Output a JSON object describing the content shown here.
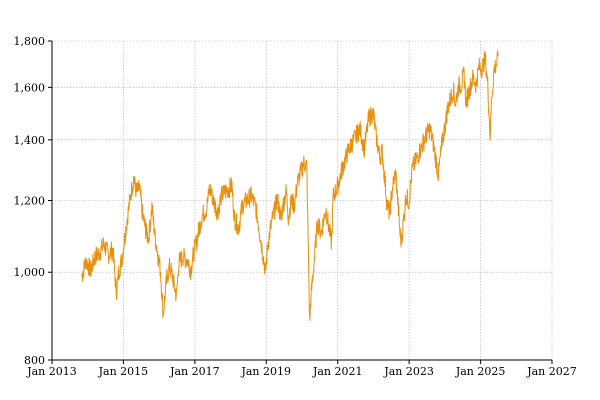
{
  "chart_data": {
    "type": "line",
    "title": "",
    "xlabel": "",
    "ylabel": "",
    "y_scale": "log",
    "ylim": [
      800,
      1800
    ],
    "xlim": [
      "2013-01-01",
      "2027-01-01"
    ],
    "grid": true,
    "legend": "none",
    "y_ticks": [
      {
        "value": 800,
        "label": "800"
      },
      {
        "value": 1000,
        "label": "1,000"
      },
      {
        "value": 1200,
        "label": "1,200"
      },
      {
        "value": 1400,
        "label": "1,400"
      },
      {
        "value": 1600,
        "label": "1,600"
      },
      {
        "value": 1800,
        "label": "1,800"
      }
    ],
    "x_ticks": [
      {
        "value": "2013-01-01",
        "label": "Jan 2013"
      },
      {
        "value": "2015-01-01",
        "label": "Jan 2015"
      },
      {
        "value": "2017-01-01",
        "label": "Jan 2017"
      },
      {
        "value": "2019-01-01",
        "label": "Jan 2019"
      },
      {
        "value": "2021-01-01",
        "label": "Jan 2021"
      },
      {
        "value": "2023-01-01",
        "label": "Jan 2023"
      },
      {
        "value": "2025-01-01",
        "label": "Jan 2025"
      },
      {
        "value": "2027-01-01",
        "label": "Jan 2027"
      }
    ],
    "series": [
      {
        "color": "#e8900c",
        "points": [
          [
            "2013-11-01",
            990
          ],
          [
            "2013-12-15",
            1030
          ],
          [
            "2014-02-01",
            1005
          ],
          [
            "2014-03-15",
            1040
          ],
          [
            "2014-05-01",
            1050
          ],
          [
            "2014-06-15",
            1075
          ],
          [
            "2014-08-01",
            1045
          ],
          [
            "2014-09-15",
            1060
          ],
          [
            "2014-10-20",
            950
          ],
          [
            "2014-11-15",
            1000
          ],
          [
            "2014-12-20",
            1040
          ],
          [
            "2015-02-01",
            1130
          ],
          [
            "2015-03-15",
            1215
          ],
          [
            "2015-04-15",
            1270
          ],
          [
            "2015-05-15",
            1225
          ],
          [
            "2015-06-15",
            1240
          ],
          [
            "2015-07-15",
            1160
          ],
          [
            "2015-08-20",
            1110
          ],
          [
            "2015-09-15",
            1090
          ],
          [
            "2015-10-20",
            1180
          ],
          [
            "2015-11-20",
            1095
          ],
          [
            "2016-01-15",
            1005
          ],
          [
            "2016-02-12",
            900
          ],
          [
            "2016-03-20",
            985
          ],
          [
            "2016-04-20",
            1015
          ],
          [
            "2016-05-20",
            985
          ],
          [
            "2016-06-27",
            940
          ],
          [
            "2016-07-20",
            1025
          ],
          [
            "2016-09-01",
            1040
          ],
          [
            "2016-10-20",
            1030
          ],
          [
            "2016-11-20",
            1005
          ],
          [
            "2016-12-20",
            1050
          ],
          [
            "2017-02-01",
            1100
          ],
          [
            "2017-03-15",
            1155
          ],
          [
            "2017-05-01",
            1175
          ],
          [
            "2017-06-01",
            1240
          ],
          [
            "2017-07-15",
            1195
          ],
          [
            "2017-08-20",
            1165
          ],
          [
            "2017-10-01",
            1215
          ],
          [
            "2017-11-15",
            1230
          ],
          [
            "2018-01-15",
            1245
          ],
          [
            "2018-02-10",
            1145
          ],
          [
            "2018-03-25",
            1120
          ],
          [
            "2018-05-01",
            1185
          ],
          [
            "2018-06-15",
            1200
          ],
          [
            "2018-08-01",
            1215
          ],
          [
            "2018-09-15",
            1180
          ],
          [
            "2018-10-25",
            1110
          ],
          [
            "2018-12-24",
            1000
          ],
          [
            "2019-01-20",
            1080
          ],
          [
            "2019-03-01",
            1140
          ],
          [
            "2019-04-25",
            1205
          ],
          [
            "2019-05-31",
            1145
          ],
          [
            "2019-06-20",
            1185
          ],
          [
            "2019-07-25",
            1230
          ],
          [
            "2019-08-15",
            1150
          ],
          [
            "2019-09-15",
            1200
          ],
          [
            "2019-10-15",
            1185
          ],
          [
            "2019-11-15",
            1255
          ],
          [
            "2019-12-31",
            1300
          ],
          [
            "2020-01-20",
            1320
          ],
          [
            "2020-02-19",
            1310
          ],
          [
            "2020-03-20",
            880
          ],
          [
            "2020-04-01",
            935
          ],
          [
            "2020-04-30",
            1015
          ],
          [
            "2020-06-08",
            1135
          ],
          [
            "2020-07-15",
            1105
          ],
          [
            "2020-08-15",
            1150
          ],
          [
            "2020-09-01",
            1175
          ],
          [
            "2020-10-30",
            1075
          ],
          [
            "2020-11-15",
            1210
          ],
          [
            "2020-12-31",
            1245
          ],
          [
            "2021-02-15",
            1300
          ],
          [
            "2021-04-15",
            1360
          ],
          [
            "2021-06-15",
            1400
          ],
          [
            "2021-08-15",
            1440
          ],
          [
            "2021-09-30",
            1370
          ],
          [
            "2021-11-15",
            1480
          ],
          [
            "2021-12-31",
            1500
          ],
          [
            "2022-01-25",
            1420
          ],
          [
            "2022-03-08",
            1340
          ],
          [
            "2022-04-01",
            1360
          ],
          [
            "2022-05-20",
            1190
          ],
          [
            "2022-06-16",
            1160
          ],
          [
            "2022-07-15",
            1240
          ],
          [
            "2022-08-16",
            1290
          ],
          [
            "2022-09-30",
            1105
          ],
          [
            "2022-10-13",
            1080
          ],
          [
            "2022-11-30",
            1215
          ],
          [
            "2022-12-31",
            1195
          ],
          [
            "2023-02-01",
            1300
          ],
          [
            "2023-03-15",
            1330
          ],
          [
            "2023-05-01",
            1370
          ],
          [
            "2023-06-15",
            1410
          ],
          [
            "2023-07-31",
            1440
          ],
          [
            "2023-09-01",
            1395
          ],
          [
            "2023-10-27",
            1280
          ],
          [
            "2023-11-30",
            1380
          ],
          [
            "2023-12-31",
            1445
          ],
          [
            "2024-02-01",
            1520
          ],
          [
            "2024-03-28",
            1590
          ],
          [
            "2024-04-19",
            1535
          ],
          [
            "2024-05-20",
            1605
          ],
          [
            "2024-06-20",
            1615
          ],
          [
            "2024-07-16",
            1655
          ],
          [
            "2024-08-05",
            1540
          ],
          [
            "2024-09-15",
            1600
          ],
          [
            "2024-10-15",
            1640
          ],
          [
            "2024-11-15",
            1610
          ],
          [
            "2024-12-15",
            1685
          ],
          [
            "2025-01-15",
            1680
          ],
          [
            "2025-02-18",
            1720
          ],
          [
            "2025-03-15",
            1610
          ],
          [
            "2025-04-08",
            1415
          ],
          [
            "2025-04-25",
            1565
          ],
          [
            "2025-05-20",
            1680
          ],
          [
            "2025-06-15",
            1700
          ],
          [
            "2025-06-30",
            1730
          ]
        ]
      }
    ]
  }
}
